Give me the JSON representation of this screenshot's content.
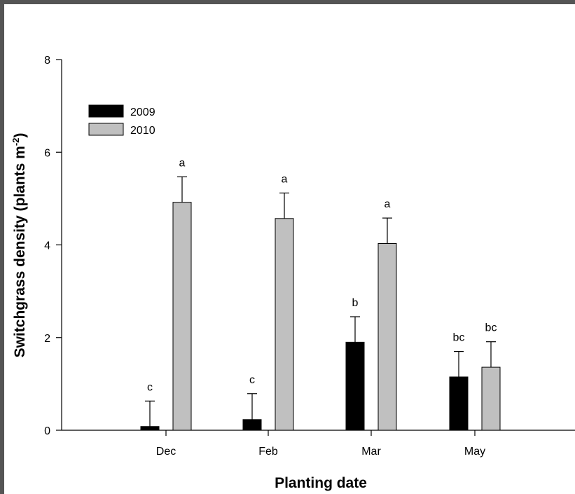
{
  "chart_data": {
    "type": "bar",
    "xlabel": "Planting date",
    "ylabel": "Switchgrass density (plants m",
    "ylabel_superscript": "-2",
    "ylabel_suffix": ")",
    "ylim": [
      0,
      8
    ],
    "yticks": [
      0,
      2,
      4,
      6,
      8
    ],
    "categories": [
      "Dec",
      "Feb",
      "Mar",
      "May"
    ],
    "legend_position": "top-left",
    "grid": false,
    "series": [
      {
        "name": "2009",
        "color": "#000000",
        "values": [
          0.08,
          0.23,
          1.9,
          1.15
        ],
        "errors": [
          0.55,
          0.56,
          0.55,
          0.55
        ],
        "letters": [
          "c",
          "c",
          "b",
          "bc"
        ]
      },
      {
        "name": "2010",
        "color": "#c0c0c0",
        "values": [
          4.92,
          4.57,
          4.03,
          1.36
        ],
        "errors": [
          0.55,
          0.55,
          0.55,
          0.55
        ],
        "letters": [
          "a",
          "a",
          "a",
          "bc"
        ]
      }
    ]
  }
}
